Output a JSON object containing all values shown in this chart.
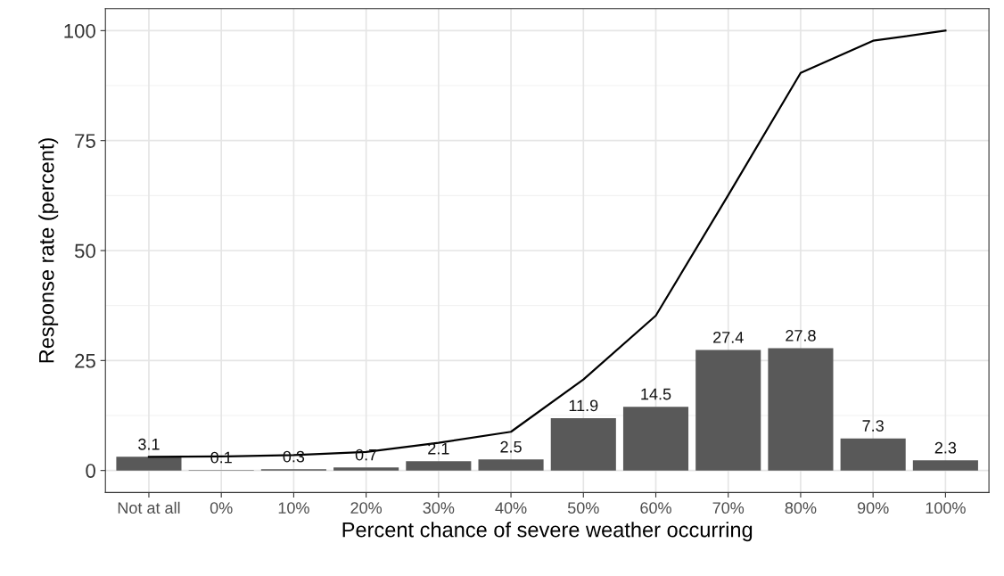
{
  "chart_data": {
    "type": "bar",
    "xlabel": "Percent chance of severe weather occurring",
    "ylabel": "Response rate (percent)",
    "categories": [
      "Not at all",
      "0%",
      "10%",
      "20%",
      "30%",
      "40%",
      "50%",
      "60%",
      "70%",
      "80%",
      "90%",
      "100%"
    ],
    "series": [
      {
        "color": "#595959",
        "values": [
          3.1,
          0.1,
          0.3,
          0.7,
          2.1,
          2.5,
          11.9,
          14.5,
          27.4,
          27.8,
          7.3,
          2.3
        ],
        "value_labels": [
          "3.1",
          "0.1",
          "0.3",
          "0.7",
          "2.1",
          "2.5",
          "11.9",
          "14.5",
          "27.4",
          "27.8",
          "7.3",
          "2.3"
        ]
      },
      {
        "type": "line",
        "color": "#000000",
        "values": [
          3.1,
          3.2,
          3.5,
          4.2,
          6.3,
          8.8,
          20.7,
          35.2,
          62.6,
          90.4,
          97.7,
          100
        ]
      }
    ],
    "ylim": [
      -5,
      105
    ],
    "yticks": [
      0,
      25,
      50,
      75,
      100
    ],
    "grid": true,
    "line_style": "solid",
    "marker": "none"
  }
}
